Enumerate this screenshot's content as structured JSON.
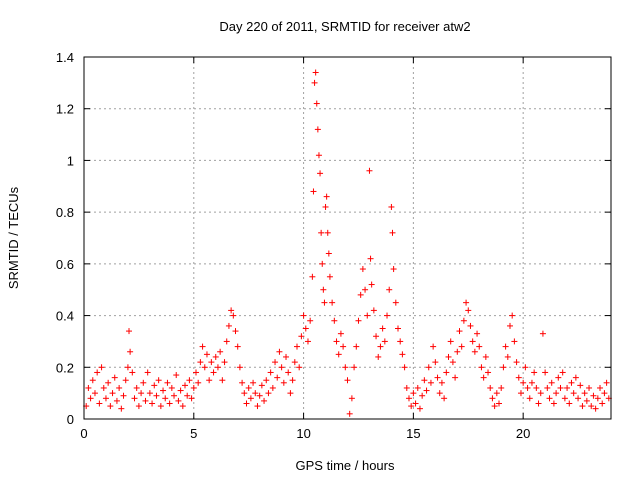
{
  "chart_data": {
    "type": "scatter",
    "title": "Day 220 of 2011, SRMTID for receiver atw2",
    "xlabel": "GPS time / hours",
    "ylabel": "SRMTID / TECUs",
    "xlim": [
      0,
      24
    ],
    "ylim": [
      0,
      1.4
    ],
    "xticks": [
      0,
      5,
      10,
      15,
      20
    ],
    "yticks": [
      0,
      0.2,
      0.4,
      0.6,
      0.8,
      1,
      1.2,
      1.4
    ],
    "xtick_labels": [
      "0",
      "5",
      "10",
      "15",
      "20"
    ],
    "ytick_labels": [
      "0",
      "0.2",
      "0.4",
      "0.6",
      "0.8",
      "1",
      "1.2",
      "1.4"
    ],
    "grid": true,
    "marker": "+",
    "series": [
      {
        "name": "SRMTID",
        "color": "#ff0000",
        "points": [
          [
            0.1,
            0.05
          ],
          [
            0.2,
            0.12
          ],
          [
            0.3,
            0.08
          ],
          [
            0.4,
            0.15
          ],
          [
            0.5,
            0.1
          ],
          [
            0.6,
            0.18
          ],
          [
            0.7,
            0.06
          ],
          [
            0.8,
            0.2
          ],
          [
            0.9,
            0.12
          ],
          [
            1.0,
            0.08
          ],
          [
            1.1,
            0.14
          ],
          [
            1.2,
            0.05
          ],
          [
            1.3,
            0.1
          ],
          [
            1.4,
            0.16
          ],
          [
            1.5,
            0.07
          ],
          [
            1.6,
            0.12
          ],
          [
            1.7,
            0.04
          ],
          [
            1.8,
            0.09
          ],
          [
            1.9,
            0.15
          ],
          [
            2.0,
            0.2
          ],
          [
            2.05,
            0.34
          ],
          [
            2.1,
            0.26
          ],
          [
            2.2,
            0.18
          ],
          [
            2.3,
            0.08
          ],
          [
            2.4,
            0.12
          ],
          [
            2.5,
            0.05
          ],
          [
            2.6,
            0.1
          ],
          [
            2.7,
            0.14
          ],
          [
            2.8,
            0.07
          ],
          [
            2.9,
            0.18
          ],
          [
            3.0,
            0.1
          ],
          [
            3.1,
            0.06
          ],
          [
            3.2,
            0.13
          ],
          [
            3.3,
            0.09
          ],
          [
            3.4,
            0.15
          ],
          [
            3.5,
            0.05
          ],
          [
            3.6,
            0.11
          ],
          [
            3.7,
            0.08
          ],
          [
            3.8,
            0.14
          ],
          [
            3.9,
            0.06
          ],
          [
            4.0,
            0.12
          ],
          [
            4.1,
            0.09
          ],
          [
            4.2,
            0.17
          ],
          [
            4.3,
            0.07
          ],
          [
            4.4,
            0.11
          ],
          [
            4.5,
            0.05
          ],
          [
            4.6,
            0.13
          ],
          [
            4.7,
            0.09
          ],
          [
            4.8,
            0.15
          ],
          [
            4.9,
            0.08
          ],
          [
            5.0,
            0.12
          ],
          [
            5.1,
            0.18
          ],
          [
            5.2,
            0.14
          ],
          [
            5.3,
            0.22
          ],
          [
            5.4,
            0.28
          ],
          [
            5.5,
            0.2
          ],
          [
            5.6,
            0.25
          ],
          [
            5.7,
            0.15
          ],
          [
            5.8,
            0.22
          ],
          [
            5.9,
            0.18
          ],
          [
            6.0,
            0.24
          ],
          [
            6.1,
            0.2
          ],
          [
            6.2,
            0.26
          ],
          [
            6.3,
            0.15
          ],
          [
            6.4,
            0.22
          ],
          [
            6.5,
            0.3
          ],
          [
            6.6,
            0.36
          ],
          [
            6.7,
            0.42
          ],
          [
            6.8,
            0.4
          ],
          [
            6.9,
            0.34
          ],
          [
            7.0,
            0.28
          ],
          [
            7.1,
            0.2
          ],
          [
            7.2,
            0.14
          ],
          [
            7.3,
            0.1
          ],
          [
            7.4,
            0.06
          ],
          [
            7.5,
            0.12
          ],
          [
            7.6,
            0.08
          ],
          [
            7.7,
            0.14
          ],
          [
            7.8,
            0.1
          ],
          [
            7.9,
            0.05
          ],
          [
            8.0,
            0.09
          ],
          [
            8.1,
            0.13
          ],
          [
            8.2,
            0.07
          ],
          [
            8.3,
            0.15
          ],
          [
            8.4,
            0.1
          ],
          [
            8.5,
            0.18
          ],
          [
            8.6,
            0.12
          ],
          [
            8.7,
            0.22
          ],
          [
            8.8,
            0.16
          ],
          [
            8.9,
            0.26
          ],
          [
            9.0,
            0.2
          ],
          [
            9.1,
            0.14
          ],
          [
            9.2,
            0.24
          ],
          [
            9.3,
            0.18
          ],
          [
            9.4,
            0.1
          ],
          [
            9.5,
            0.15
          ],
          [
            9.6,
            0.22
          ],
          [
            9.7,
            0.28
          ],
          [
            9.8,
            0.2
          ],
          [
            9.9,
            0.32
          ],
          [
            10.0,
            0.4
          ],
          [
            10.1,
            0.35
          ],
          [
            10.2,
            0.3
          ],
          [
            10.3,
            0.38
          ],
          [
            10.4,
            0.55
          ],
          [
            10.45,
            0.88
          ],
          [
            10.5,
            1.3
          ],
          [
            10.55,
            1.34
          ],
          [
            10.6,
            1.22
          ],
          [
            10.65,
            1.12
          ],
          [
            10.7,
            1.02
          ],
          [
            10.75,
            0.95
          ],
          [
            10.8,
            0.72
          ],
          [
            10.85,
            0.6
          ],
          [
            10.9,
            0.5
          ],
          [
            10.95,
            0.45
          ],
          [
            11.0,
            0.82
          ],
          [
            11.05,
            0.86
          ],
          [
            11.1,
            0.72
          ],
          [
            11.15,
            0.64
          ],
          [
            11.2,
            0.55
          ],
          [
            11.3,
            0.45
          ],
          [
            11.4,
            0.38
          ],
          [
            11.5,
            0.3
          ],
          [
            11.6,
            0.25
          ],
          [
            11.7,
            0.33
          ],
          [
            11.8,
            0.28
          ],
          [
            11.9,
            0.2
          ],
          [
            12.0,
            0.15
          ],
          [
            12.1,
            0.02
          ],
          [
            12.2,
            0.08
          ],
          [
            12.3,
            0.2
          ],
          [
            12.4,
            0.28
          ],
          [
            12.5,
            0.38
          ],
          [
            12.6,
            0.48
          ],
          [
            12.7,
            0.58
          ],
          [
            12.8,
            0.5
          ],
          [
            12.9,
            0.4
          ],
          [
            13.0,
            0.96
          ],
          [
            13.05,
            0.62
          ],
          [
            13.1,
            0.52
          ],
          [
            13.2,
            0.42
          ],
          [
            13.3,
            0.32
          ],
          [
            13.4,
            0.24
          ],
          [
            13.5,
            0.28
          ],
          [
            13.6,
            0.35
          ],
          [
            13.7,
            0.3
          ],
          [
            13.8,
            0.4
          ],
          [
            13.9,
            0.5
          ],
          [
            14.0,
            0.82
          ],
          [
            14.05,
            0.72
          ],
          [
            14.1,
            0.58
          ],
          [
            14.2,
            0.45
          ],
          [
            14.3,
            0.35
          ],
          [
            14.4,
            0.3
          ],
          [
            14.5,
            0.25
          ],
          [
            14.6,
            0.2
          ],
          [
            14.7,
            0.12
          ],
          [
            14.8,
            0.08
          ],
          [
            14.9,
            0.05
          ],
          [
            15.0,
            0.1
          ],
          [
            15.1,
            0.06
          ],
          [
            15.2,
            0.12
          ],
          [
            15.3,
            0.04
          ],
          [
            15.4,
            0.09
          ],
          [
            15.5,
            0.15
          ],
          [
            15.6,
            0.11
          ],
          [
            15.7,
            0.2
          ],
          [
            15.8,
            0.14
          ],
          [
            15.9,
            0.28
          ],
          [
            16.0,
            0.22
          ],
          [
            16.1,
            0.16
          ],
          [
            16.2,
            0.1
          ],
          [
            16.3,
            0.14
          ],
          [
            16.4,
            0.08
          ],
          [
            16.5,
            0.18
          ],
          [
            16.6,
            0.24
          ],
          [
            16.7,
            0.3
          ],
          [
            16.8,
            0.22
          ],
          [
            16.9,
            0.16
          ],
          [
            17.0,
            0.26
          ],
          [
            17.1,
            0.34
          ],
          [
            17.2,
            0.28
          ],
          [
            17.3,
            0.38
          ],
          [
            17.4,
            0.45
          ],
          [
            17.5,
            0.42
          ],
          [
            17.6,
            0.36
          ],
          [
            17.7,
            0.3
          ],
          [
            17.8,
            0.26
          ],
          [
            17.9,
            0.33
          ],
          [
            18.0,
            0.28
          ],
          [
            18.1,
            0.2
          ],
          [
            18.2,
            0.16
          ],
          [
            18.3,
            0.24
          ],
          [
            18.4,
            0.18
          ],
          [
            18.5,
            0.12
          ],
          [
            18.6,
            0.08
          ],
          [
            18.7,
            0.05
          ],
          [
            18.8,
            0.1
          ],
          [
            18.9,
            0.06
          ],
          [
            19.0,
            0.12
          ],
          [
            19.1,
            0.2
          ],
          [
            19.2,
            0.28
          ],
          [
            19.3,
            0.24
          ],
          [
            19.4,
            0.36
          ],
          [
            19.5,
            0.4
          ],
          [
            19.6,
            0.3
          ],
          [
            19.7,
            0.22
          ],
          [
            19.8,
            0.16
          ],
          [
            19.9,
            0.1
          ],
          [
            20.0,
            0.14
          ],
          [
            20.1,
            0.2
          ],
          [
            20.2,
            0.12
          ],
          [
            20.3,
            0.08
          ],
          [
            20.4,
            0.14
          ],
          [
            20.5,
            0.18
          ],
          [
            20.6,
            0.12
          ],
          [
            20.7,
            0.06
          ],
          [
            20.8,
            0.1
          ],
          [
            20.9,
            0.33
          ],
          [
            21.0,
            0.18
          ],
          [
            21.1,
            0.12
          ],
          [
            21.2,
            0.08
          ],
          [
            21.3,
            0.14
          ],
          [
            21.4,
            0.06
          ],
          [
            21.5,
            0.1
          ],
          [
            21.6,
            0.16
          ],
          [
            21.7,
            0.12
          ],
          [
            21.8,
            0.18
          ],
          [
            21.9,
            0.08
          ],
          [
            22.0,
            0.12
          ],
          [
            22.1,
            0.06
          ],
          [
            22.2,
            0.14
          ],
          [
            22.3,
            0.1
          ],
          [
            22.4,
            0.16
          ],
          [
            22.5,
            0.08
          ],
          [
            22.6,
            0.13
          ],
          [
            22.7,
            0.05
          ],
          [
            22.8,
            0.1
          ],
          [
            22.9,
            0.07
          ],
          [
            23.0,
            0.12
          ],
          [
            23.1,
            0.05
          ],
          [
            23.2,
            0.09
          ],
          [
            23.3,
            0.04
          ],
          [
            23.4,
            0.08
          ],
          [
            23.5,
            0.12
          ],
          [
            23.6,
            0.06
          ],
          [
            23.7,
            0.1
          ],
          [
            23.8,
            0.14
          ],
          [
            23.9,
            0.08
          ]
        ]
      }
    ]
  }
}
